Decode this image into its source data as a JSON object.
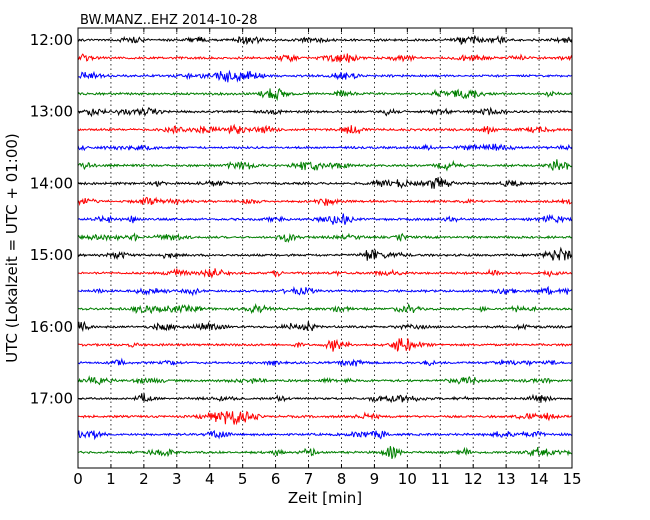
{
  "chart_data": {
    "type": "line",
    "title": "BW.MANZ..EHZ 2014-10-28",
    "xlabel": "Zeit  [min]",
    "ylabel": "UTC (Lokalzeit = UTC + 01:00)",
    "xlim": [
      0,
      15
    ],
    "x_ticks": [
      0,
      1,
      2,
      3,
      4,
      5,
      6,
      7,
      8,
      9,
      10,
      11,
      12,
      13,
      14,
      15
    ],
    "y_tick_labels": [
      "12:00",
      "13:00",
      "14:00",
      "15:00",
      "16:00",
      "17:00"
    ],
    "grid": "vertical dotted",
    "trace_colors": [
      "#000000",
      "#ff0000",
      "#0000ff",
      "#007f00"
    ],
    "traces": [
      {
        "start": "12:00",
        "color": "#000000"
      },
      {
        "start": "12:15",
        "color": "#ff0000"
      },
      {
        "start": "12:30",
        "color": "#0000ff"
      },
      {
        "start": "12:45",
        "color": "#007f00"
      },
      {
        "start": "13:00",
        "color": "#000000"
      },
      {
        "start": "13:15",
        "color": "#ff0000"
      },
      {
        "start": "13:30",
        "color": "#0000ff"
      },
      {
        "start": "13:45",
        "color": "#007f00"
      },
      {
        "start": "14:00",
        "color": "#000000"
      },
      {
        "start": "14:15",
        "color": "#ff0000"
      },
      {
        "start": "14:30",
        "color": "#0000ff"
      },
      {
        "start": "14:45",
        "color": "#007f00"
      },
      {
        "start": "15:00",
        "color": "#000000"
      },
      {
        "start": "15:15",
        "color": "#ff0000"
      },
      {
        "start": "15:30",
        "color": "#0000ff"
      },
      {
        "start": "15:45",
        "color": "#007f00"
      },
      {
        "start": "16:00",
        "color": "#000000"
      },
      {
        "start": "16:15",
        "color": "#ff0000"
      },
      {
        "start": "16:30",
        "color": "#0000ff"
      },
      {
        "start": "16:45",
        "color": "#007f00"
      },
      {
        "start": "17:00",
        "color": "#000000"
      },
      {
        "start": "17:15",
        "color": "#ff0000"
      },
      {
        "start": "17:30",
        "color": "#0000ff"
      },
      {
        "start": "17:45",
        "color": "#007f00"
      }
    ]
  }
}
